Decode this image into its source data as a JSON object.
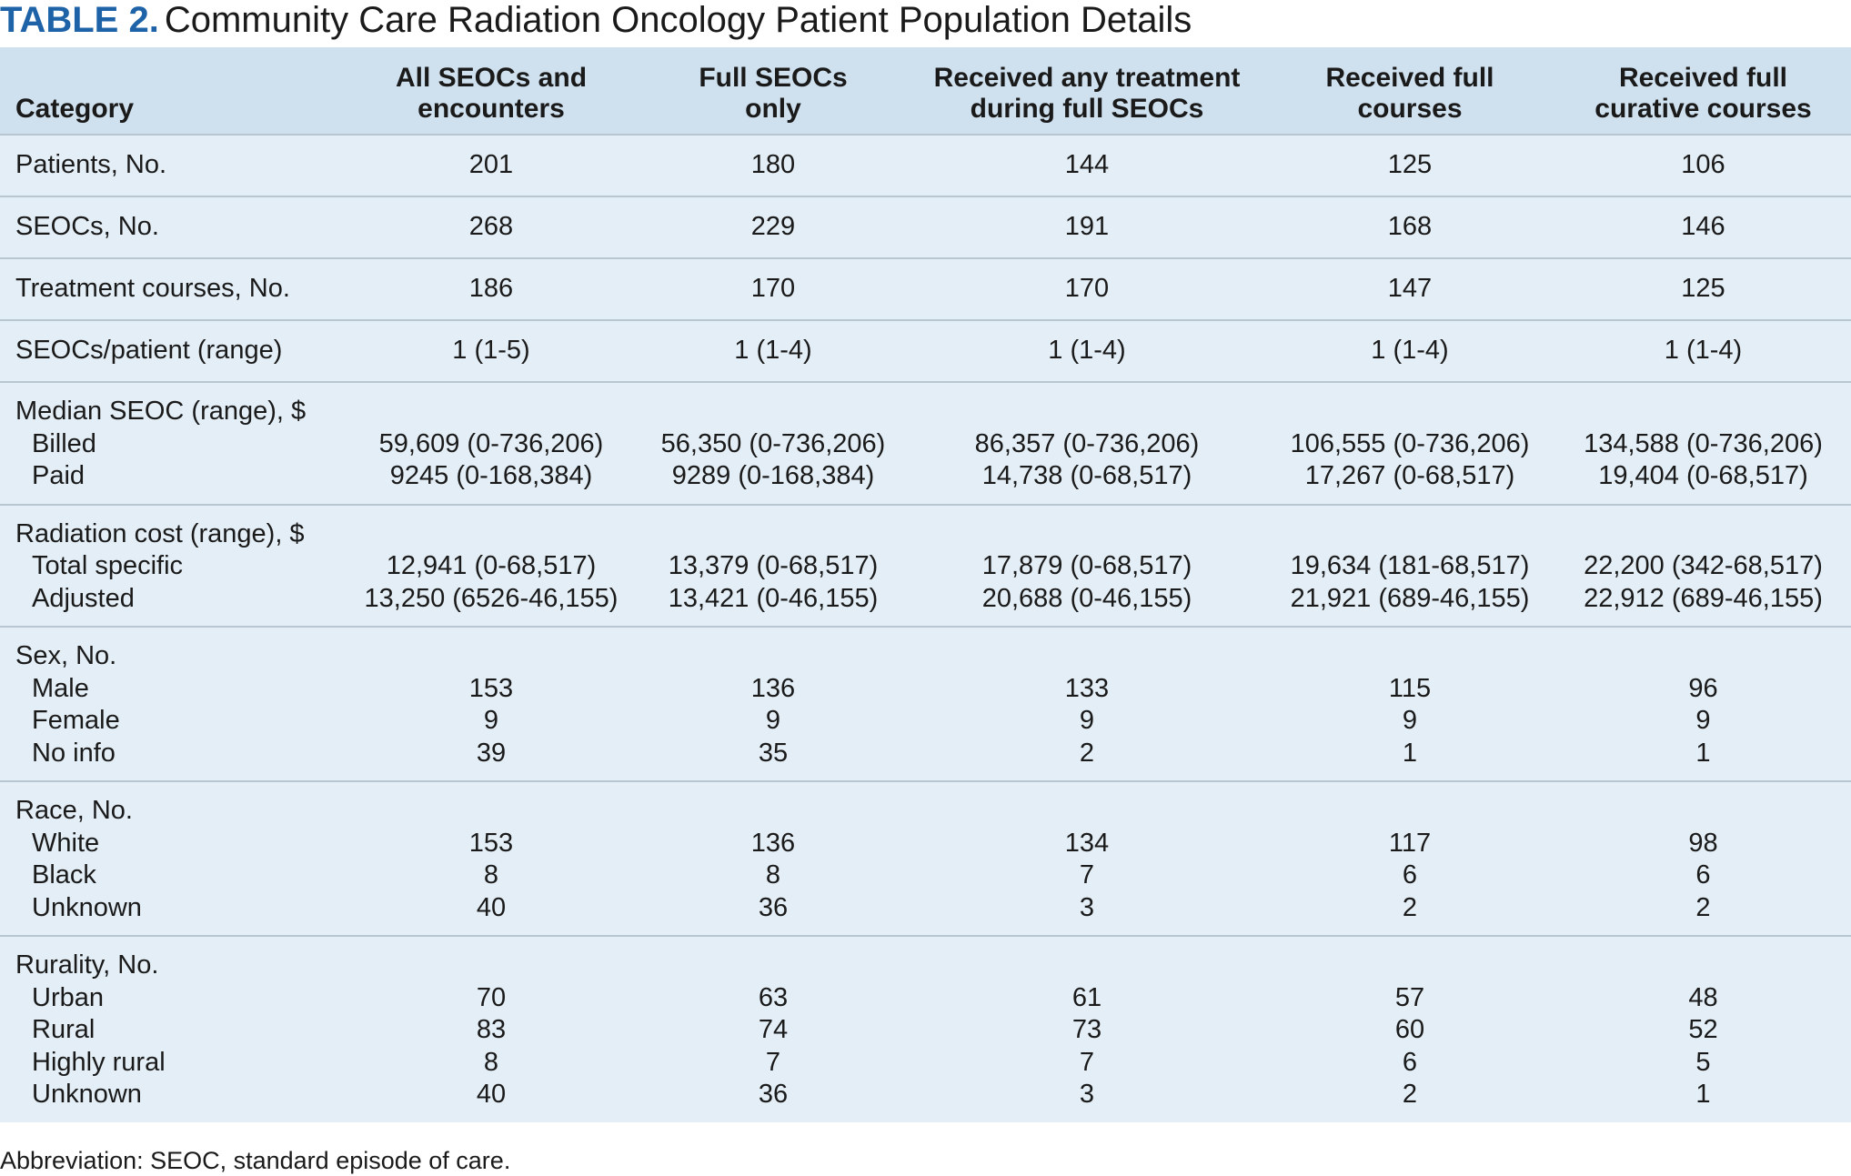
{
  "title": {
    "tag": "TABLE 2.",
    "text": "Community Care Radiation Oncology Patient Population Details"
  },
  "headers": [
    [
      "Category"
    ],
    [
      "All SEOCs and",
      "encounters"
    ],
    [
      "Full SEOCs",
      "only"
    ],
    [
      "Received any treatment",
      "during full SEOCs"
    ],
    [
      "Received full",
      "courses"
    ],
    [
      "Received full",
      "curative courses"
    ]
  ],
  "simple_rows": [
    {
      "label": "Patients, No.",
      "values": [
        "201",
        "180",
        "144",
        "125",
        "106"
      ]
    },
    {
      "label": "SEOCs, No.",
      "values": [
        "268",
        "229",
        "191",
        "168",
        "146"
      ]
    },
    {
      "label": "Treatment courses, No.",
      "values": [
        "186",
        "170",
        "170",
        "147",
        "125"
      ]
    },
    {
      "label": "SEOCs/patient (range)",
      "values": [
        "1 (1-5)",
        "1 (1-4)",
        "1 (1-4)",
        "1 (1-4)",
        "1 (1-4)"
      ]
    }
  ],
  "group_rows": [
    {
      "label": "Median SEOC (range), $",
      "sub": [
        {
          "label": "Billed",
          "values": [
            "59,609 (0-736,206)",
            "56,350 (0-736,206)",
            "86,357 (0-736,206)",
            "106,555 (0-736,206)",
            "134,588 (0-736,206)"
          ]
        },
        {
          "label": "Paid",
          "values": [
            "9245 (0-168,384)",
            "9289 (0-168,384)",
            "14,738 (0-68,517)",
            "17,267 (0-68,517)",
            "19,404 (0-68,517)"
          ]
        }
      ]
    },
    {
      "label": "Radiation cost (range), $",
      "sub": [
        {
          "label": "Total specific",
          "values": [
            "12,941 (0-68,517)",
            "13,379 (0-68,517)",
            "17,879 (0-68,517)",
            "19,634 (181-68,517)",
            "22,200 (342-68,517)"
          ]
        },
        {
          "label": "Adjusted",
          "values": [
            "13,250 (6526-46,155)",
            "13,421 (0-46,155)",
            "20,688 (0-46,155)",
            "21,921 (689-46,155)",
            "22,912 (689-46,155)"
          ]
        }
      ]
    },
    {
      "label": "Sex, No.",
      "sub": [
        {
          "label": "Male",
          "values": [
            "153",
            "136",
            "133",
            "115",
            "96"
          ]
        },
        {
          "label": "Female",
          "values": [
            "9",
            "9",
            "9",
            "9",
            "9"
          ]
        },
        {
          "label": "No info",
          "values": [
            "39",
            "35",
            "2",
            "1",
            "1"
          ]
        }
      ]
    },
    {
      "label": "Race, No.",
      "sub": [
        {
          "label": "White",
          "values": [
            "153",
            "136",
            "134",
            "117",
            "98"
          ]
        },
        {
          "label": "Black",
          "values": [
            "8",
            "8",
            "7",
            "6",
            "6"
          ]
        },
        {
          "label": "Unknown",
          "values": [
            "40",
            "36",
            "3",
            "2",
            "2"
          ]
        }
      ]
    },
    {
      "label": "Rurality, No.",
      "sub": [
        {
          "label": "Urban",
          "values": [
            "70",
            "63",
            "61",
            "57",
            "48"
          ]
        },
        {
          "label": "Rural",
          "values": [
            "83",
            "74",
            "73",
            "60",
            "52"
          ]
        },
        {
          "label": "Highly rural",
          "values": [
            "8",
            "7",
            "7",
            "6",
            "5"
          ]
        },
        {
          "label": "Unknown",
          "values": [
            "40",
            "36",
            "3",
            "2",
            "1"
          ]
        }
      ]
    }
  ],
  "footnote": "Abbreviation: SEOC, standard episode of care."
}
